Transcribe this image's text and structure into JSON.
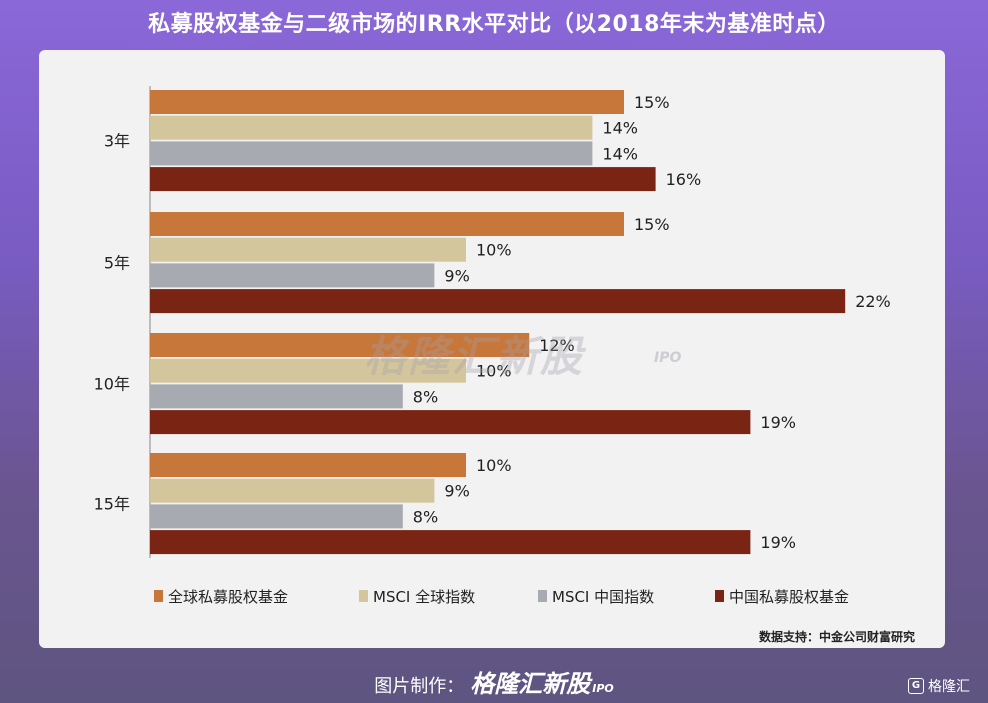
{
  "title": "私募股权基金与二级市场的IRR水平对比（以2018年末为基准时点）",
  "chart_data": {
    "type": "bar",
    "orientation": "horizontal",
    "categories": [
      "3年",
      "5年",
      "10年",
      "15年"
    ],
    "series": [
      {
        "name": "全球私募股权基金",
        "color": "#c8773a",
        "values": [
          15,
          15,
          12,
          10
        ]
      },
      {
        "name": "MSCI 全球指数",
        "color": "#d4c69c",
        "values": [
          14,
          10,
          10,
          9
        ]
      },
      {
        "name": "MSCI 中国指数",
        "color": "#a7abb1",
        "values": [
          14,
          9,
          8,
          8
        ]
      },
      {
        "name": "中国私募股权基金",
        "color": "#7a2414",
        "values": [
          16,
          22,
          19,
          19
        ]
      }
    ],
    "value_suffix": "%",
    "xlim": [
      0,
      22
    ],
    "grid": false,
    "legend_position": "bottom"
  },
  "watermark": {
    "text": "格隆汇新股",
    "sub": "IPO"
  },
  "source": "数据支持：中金公司财富研究",
  "footer": {
    "label": "图片制作：",
    "brand": "格隆汇新股",
    "sub": "IPO"
  },
  "corner_logo": {
    "mark": "G",
    "text": "格隆汇"
  }
}
